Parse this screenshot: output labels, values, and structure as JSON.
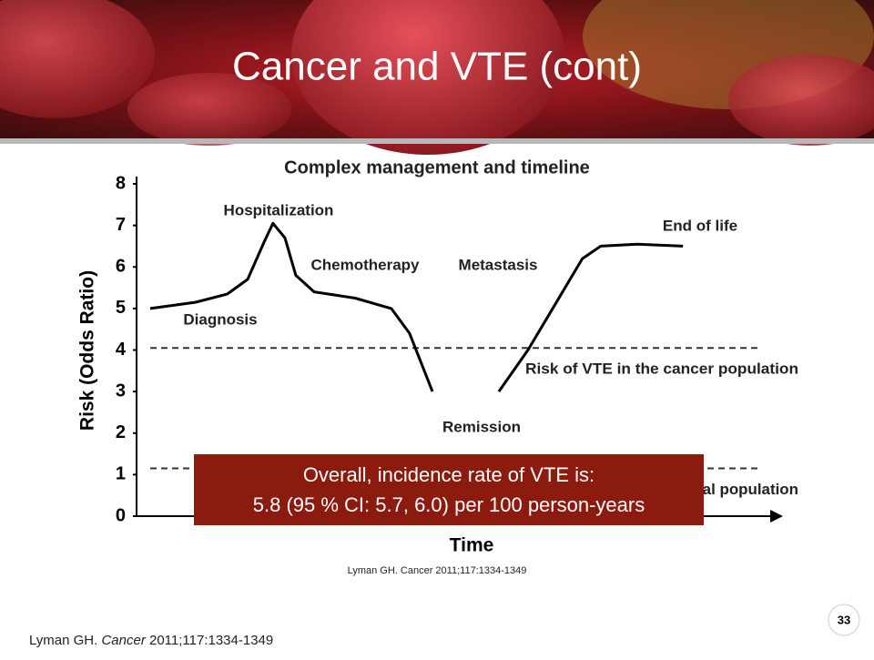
{
  "slide": {
    "title": "Cancer and VTE (cont)",
    "page_number": "33",
    "footer": {
      "author": "Lyman GH. ",
      "journal": "Cancer",
      "ref": " 2011;117:1334-1349"
    },
    "highlight": [
      "Overall, incidence rate of VTE is:",
      "5.8 (95 % CI: 5.7, 6.0) per 100 person-years"
    ]
  },
  "chart_data": {
    "type": "line",
    "title": "Complex management and timeline",
    "source": "Lyman GH. Cancer 2011;117:1334-1349",
    "x_label": "Time",
    "y_label": "Risk (Odds Ratio)",
    "x": [
      0,
      7.2,
      12.2,
      15.4,
      18,
      19.4,
      21.3,
      23,
      25.9,
      32.4,
      38.1,
      41,
      44.6,
      50,
      55.1,
      59.7,
      64,
      68.3,
      71.2,
      77,
      84.2
    ],
    "series": [
      {
        "name": "Risk timeline",
        "color": "#000000",
        "values": [
          5.0,
          5.15,
          5.35,
          5.7,
          6.6,
          7.05,
          6.7,
          5.8,
          5.4,
          5.25,
          5.0,
          4.4,
          3.0,
          null,
          3.0,
          4.0,
          5.1,
          6.2,
          6.5,
          6.55,
          6.5
        ]
      }
    ],
    "xlim": [
      0,
      100
    ],
    "ylim": [
      0,
      8
    ],
    "yticks": [
      0,
      1,
      2,
      3,
      4,
      5,
      6,
      7,
      8
    ],
    "reference_lines": [
      {
        "value": 4.05,
        "label": "Risk of VTE in the cancer population"
      },
      {
        "value": 1.15,
        "label": "Risk of VTE in the general population"
      }
    ],
    "annotations": [
      "Hospitalization",
      "Chemotherapy",
      "Metastasis",
      "End of life",
      "Diagnosis",
      "Remission"
    ]
  }
}
